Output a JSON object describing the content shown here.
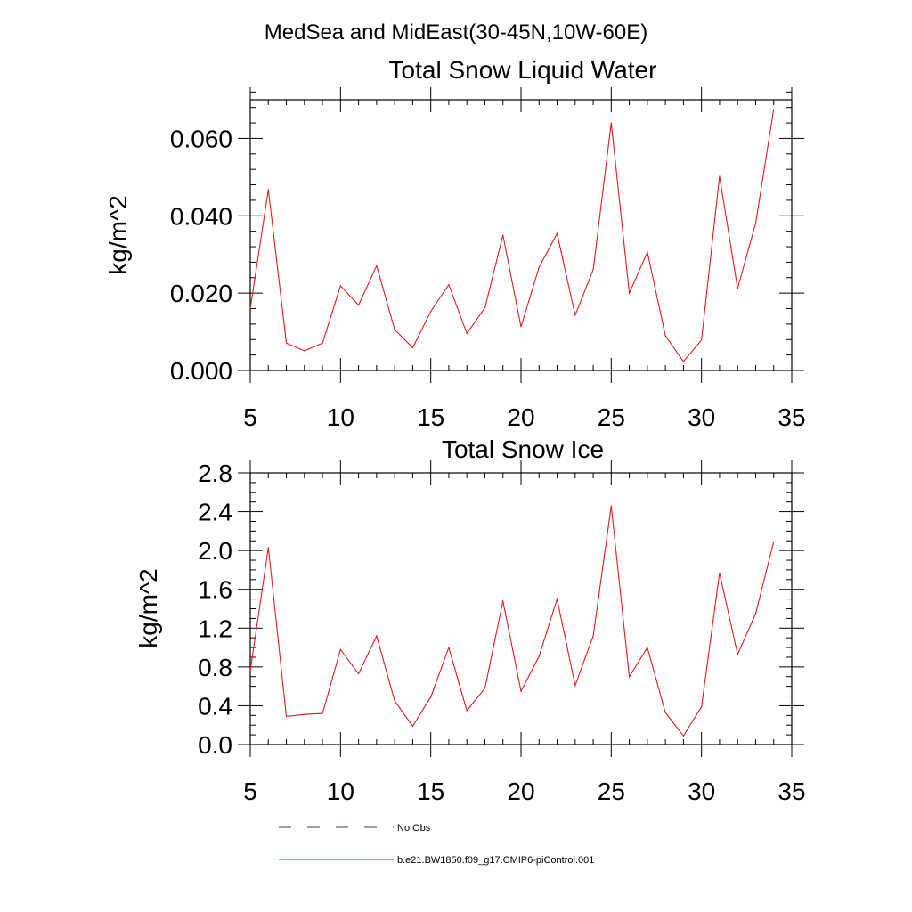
{
  "figure": {
    "title": "MedSea and MidEast(30-45N,10W-60E)"
  },
  "legend": {
    "entries": [
      {
        "label": "No Obs",
        "style": "dashed",
        "color": "#3b3b6b"
      },
      {
        "label": "b.e21.BW1850.f09_g17.CMIP6-piControl.001",
        "style": "solid",
        "color": "#e31a1c"
      }
    ]
  },
  "chart_data": [
    {
      "type": "line",
      "title": "Total Snow Liquid Water",
      "xlabel": "",
      "ylabel": "kg/m^2",
      "xlim": [
        5,
        35
      ],
      "ylim": [
        0,
        0.07
      ],
      "xticks": [
        5,
        10,
        15,
        20,
        25,
        30,
        35
      ],
      "xtick_labels": [
        "5",
        "10",
        "15",
        "20",
        "25",
        "30",
        "35"
      ],
      "yticks": [
        0,
        0.02,
        0.04,
        0.06
      ],
      "ytick_labels": [
        "0.000",
        "0.020",
        "0.040",
        "0.060"
      ],
      "yminor_step": 0.004,
      "grid": false,
      "series": [
        {
          "name": "b.e21.BW1850.f09_g17.CMIP6-piControl.001",
          "color": "#e31a1c",
          "x": [
            5,
            6,
            7,
            8,
            9,
            10,
            11,
            12,
            13,
            14,
            15,
            16,
            17,
            18,
            19,
            20,
            21,
            22,
            23,
            24,
            25,
            26,
            27,
            28,
            29,
            30,
            31,
            32,
            33,
            34
          ],
          "values": [
            0.016,
            0.0468,
            0.0071,
            0.0051,
            0.0071,
            0.0219,
            0.0169,
            0.0271,
            0.0106,
            0.0059,
            0.0153,
            0.0222,
            0.0096,
            0.0162,
            0.035,
            0.0113,
            0.0267,
            0.0354,
            0.0143,
            0.0261,
            0.064,
            0.02,
            0.0306,
            0.009,
            0.0023,
            0.0079,
            0.0502,
            0.0212,
            0.0381,
            0.0675
          ]
        }
      ]
    },
    {
      "type": "line",
      "title": "Total Snow Ice",
      "xlabel": "",
      "ylabel": "kg/m^2",
      "xlim": [
        5,
        35
      ],
      "ylim": [
        0,
        2.8
      ],
      "xticks": [
        5,
        10,
        15,
        20,
        25,
        30,
        35
      ],
      "xtick_labels": [
        "5",
        "10",
        "15",
        "20",
        "25",
        "30",
        "35"
      ],
      "yticks": [
        0,
        0.4,
        0.8,
        1.2,
        1.6,
        2.0,
        2.4,
        2.8
      ],
      "ytick_labels": [
        "0.0",
        "0.4",
        "0.8",
        "1.2",
        "1.6",
        "2.0",
        "2.4",
        "2.8"
      ],
      "yminor_step": 0.1,
      "grid": false,
      "series": [
        {
          "name": "b.e21.BW1850.f09_g17.CMIP6-piControl.001",
          "color": "#e31a1c",
          "x": [
            5,
            6,
            7,
            8,
            9,
            10,
            11,
            12,
            13,
            14,
            15,
            16,
            17,
            18,
            19,
            20,
            21,
            22,
            23,
            24,
            25,
            26,
            27,
            28,
            29,
            30,
            31,
            32,
            33,
            34
          ],
          "values": [
            0.76,
            2.03,
            0.29,
            0.31,
            0.32,
            0.98,
            0.73,
            1.12,
            0.45,
            0.19,
            0.49,
            1.0,
            0.35,
            0.58,
            1.48,
            0.55,
            0.91,
            1.5,
            0.61,
            1.12,
            2.46,
            0.7,
            1.0,
            0.33,
            0.09,
            0.39,
            1.77,
            0.93,
            1.35,
            2.09
          ]
        }
      ]
    }
  ]
}
